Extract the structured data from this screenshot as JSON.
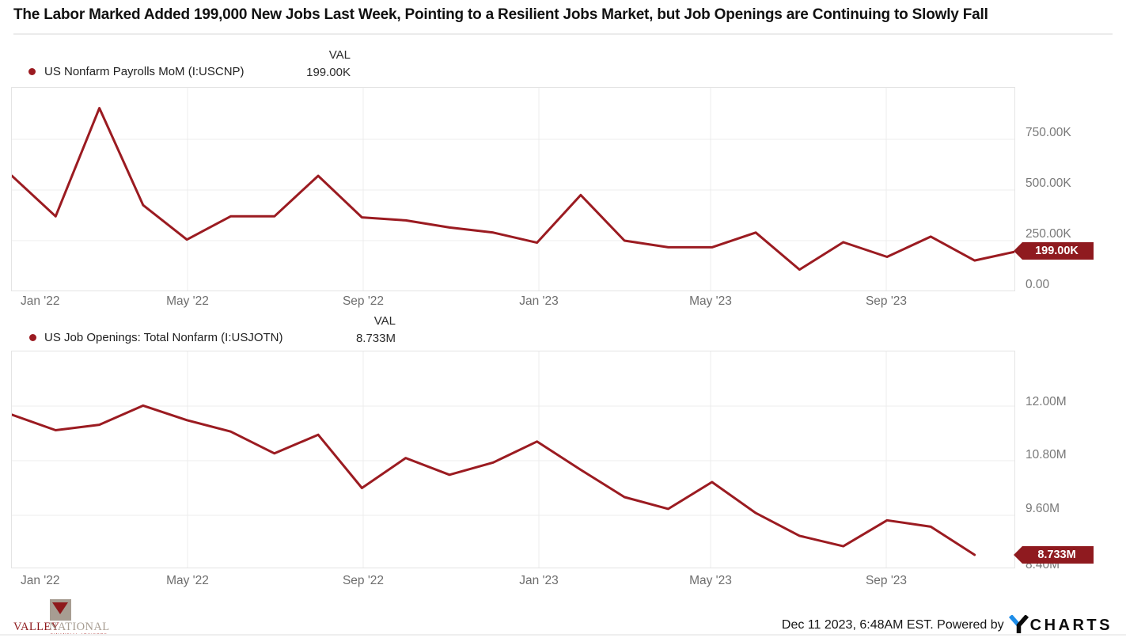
{
  "title": "The Labor Marked Added 199,000 New Jobs Last Week, Pointing to a Resilient Jobs Market, but Job Openings are Continuing to Slowly Fall",
  "colors": {
    "line": "#9B1B21",
    "badge_bg": "#8F1A1F",
    "grid": "#ECECEC",
    "valley_red": "#8E191C",
    "valley_taupe": "#A79D92",
    "ycharts_blue": "#1E8DE8"
  },
  "charts": [
    {
      "legend": {
        "label": "US Nonfarm Payrolls MoM (I:USCNP)",
        "val_header": "VAL",
        "val": "199.00K"
      },
      "badge": "199.00K",
      "y_ticks": [
        "750.00K",
        "500.00K",
        "250.00K",
        "0.00"
      ],
      "x_ticks": [
        "Jan '22",
        "May '22",
        "Sep '22",
        "Jan '23",
        "May '23",
        "Sep '23"
      ]
    },
    {
      "legend": {
        "label": "US Job Openings: Total Nonfarm (I:USJOTN)",
        "val_header": "VAL",
        "val": "8.733M"
      },
      "badge": "8.733M",
      "y_ticks": [
        "12.00M",
        "10.80M",
        "9.60M",
        "8.40M"
      ],
      "x_ticks": [
        "Jan '22",
        "May '22",
        "Sep '22",
        "Jan '23",
        "May '23",
        "Sep '23"
      ]
    }
  ],
  "footer": {
    "logo_line1a": "VALLEY",
    "logo_line1b": "NATIONAL",
    "logo_line2": "FINANCIAL ADVISORS",
    "attribution": "Dec 11 2023, 6:48AM EST. Powered by",
    "ycharts_wordmark": "CHARTS"
  },
  "chart_data": [
    {
      "type": "line",
      "title": "US Nonfarm Payrolls MoM (I:USCNP)",
      "unit": "jobs added, thousands (K)",
      "latest_value_label": "199.00K",
      "x": [
        "Dec '21",
        "Jan '22",
        "Feb '22",
        "Mar '22",
        "Apr '22",
        "May '22",
        "Jun '22",
        "Jul '22",
        "Aug '22",
        "Sep '22",
        "Oct '22",
        "Nov '22",
        "Dec '22",
        "Jan '23",
        "Feb '23",
        "Mar '23",
        "Apr '23",
        "May '23",
        "Jun '23",
        "Jul '23",
        "Aug '23",
        "Sep '23",
        "Oct '23",
        "Nov '23"
      ],
      "values": [
        570,
        370,
        904,
        425,
        255,
        370,
        370,
        570,
        365,
        350,
        315,
        290,
        240,
        475,
        250,
        217,
        217,
        290,
        107,
        242,
        170,
        270,
        152,
        199
      ],
      "y_gridlines": [
        750,
        500,
        250
      ],
      "ylim": [
        0,
        1008
      ],
      "xlabel": "",
      "ylabel": "",
      "grid": true,
      "legend_position": "top-left",
      "value_axis_side": "right"
    },
    {
      "type": "line",
      "title": "US Job Openings: Total Nonfarm (I:USJOTN)",
      "unit": "job openings, millions (M)",
      "latest_value_label": "8.733M",
      "x": [
        "Dec '21",
        "Jan '22",
        "Feb '22",
        "Mar '22",
        "Apr '22",
        "May '22",
        "Jun '22",
        "Jul '22",
        "Aug '22",
        "Sep '22",
        "Oct '22",
        "Nov '22",
        "Dec '22",
        "Jan '23",
        "Feb '23",
        "Mar '23",
        "Apr '23",
        "May '23",
        "Jun '23",
        "Jul '23",
        "Aug '23",
        "Sep '23",
        "Oct '23"
      ],
      "values": [
        11.81,
        11.47,
        11.59,
        12.01,
        11.69,
        11.44,
        10.96,
        11.37,
        10.2,
        10.86,
        10.49,
        10.76,
        11.22,
        10.6,
        10.0,
        9.74,
        10.33,
        9.65,
        9.15,
        8.92,
        9.49,
        9.35,
        8.733
      ],
      "y_gridlines": [
        12.0,
        10.8,
        9.6
      ],
      "ylim": [
        8.33,
        13.22
      ],
      "xlabel": "",
      "ylabel": "",
      "grid": true,
      "legend_position": "top-left",
      "value_axis_side": "right"
    }
  ]
}
